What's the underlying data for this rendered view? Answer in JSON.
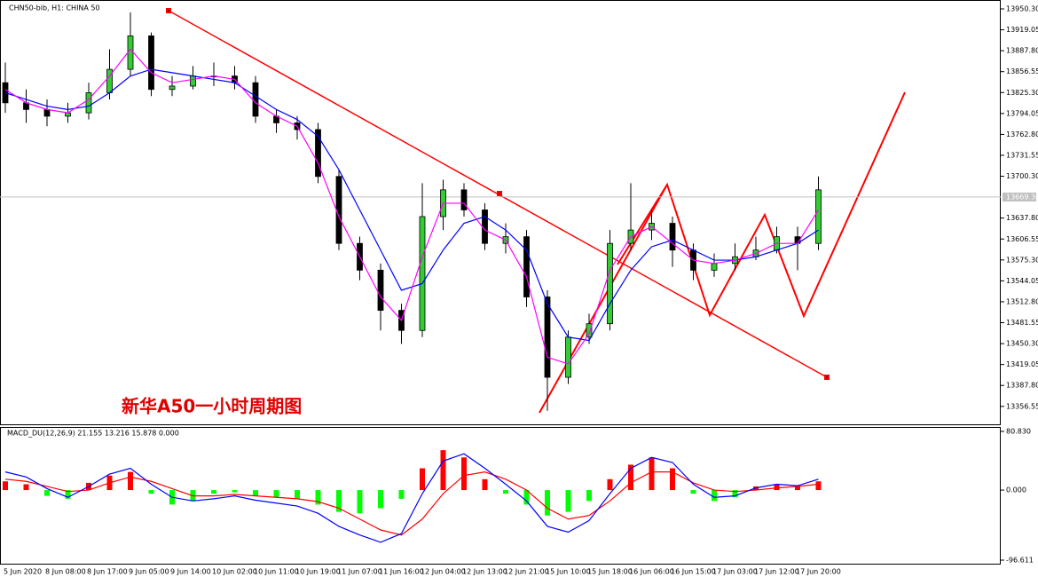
{
  "chart_data": [
    {
      "type": "candlestick",
      "title": "CHN50-bib, H1:  CHINA 50",
      "annotation": "新华A50一小时周期图",
      "categories": [
        "5 Jun 2020",
        null,
        "8 Jun 08:00",
        null,
        "8 Jun 17:00",
        null,
        "9 Jun 05:00",
        null,
        "9 Jun 14:00",
        null,
        "10 Jun 02:00",
        null,
        "10 Jun 11:00",
        null,
        "10 Jun 19:00",
        null,
        "11 Jun 07:00",
        null,
        "11 Jun 16:00",
        null,
        "12 Jun 04:00",
        null,
        "12 Jun 13:00",
        null,
        "12 Jun 21:00",
        null,
        "15 Jun 10:00",
        null,
        "15 Jun 18:00",
        null,
        "16 Jun 06:00",
        null,
        "16 Jun 15:00",
        null,
        "17 Jun 03:00",
        null,
        "17 Jun 12:00",
        null,
        "17 Jun 20:00",
        null
      ],
      "open": [
        13840,
        13810,
        13800,
        13790,
        13795,
        13825,
        13860,
        13910,
        13830,
        13835,
        13850,
        13850,
        13840,
        13790,
        13780,
        13770,
        13700,
        13600,
        13560,
        13500,
        13470,
        13640,
        13680,
        13650,
        13600,
        13610,
        13520,
        13400,
        13460,
        13480,
        13600,
        13620,
        13630,
        13590,
        13560,
        13570,
        13580,
        13590,
        13610,
        13600
      ],
      "high": [
        13870,
        13830,
        13815,
        13810,
        13840,
        13890,
        13945,
        13915,
        13850,
        13865,
        13870,
        13865,
        13850,
        13800,
        13790,
        13780,
        13710,
        13610,
        13570,
        13510,
        13690,
        13695,
        13690,
        13660,
        13630,
        13620,
        13530,
        13470,
        13495,
        13620,
        13690,
        13650,
        13640,
        13600,
        13585,
        13600,
        13610,
        13625,
        13625,
        13700
      ],
      "low": [
        13795,
        13780,
        13775,
        13780,
        13785,
        13815,
        13850,
        13820,
        13820,
        13830,
        13835,
        13830,
        13780,
        13765,
        13755,
        13690,
        13590,
        13545,
        13470,
        13450,
        13460,
        13620,
        13640,
        13590,
        13585,
        13505,
        13350,
        13390,
        13450,
        13470,
        13590,
        13605,
        13565,
        13545,
        13550,
        13560,
        13575,
        13585,
        13560,
        13590
      ],
      "close": [
        13810,
        13800,
        13790,
        13795,
        13825,
        13860,
        13910,
        13830,
        13835,
        13850,
        13850,
        13840,
        13790,
        13780,
        13770,
        13700,
        13600,
        13560,
        13500,
        13470,
        13640,
        13680,
        13650,
        13600,
        13610,
        13520,
        13400,
        13460,
        13480,
        13600,
        13620,
        13630,
        13590,
        13560,
        13570,
        13580,
        13590,
        13610,
        13600,
        13680
      ],
      "up_color": "#33cc33",
      "down_color": "#000000",
      "series": [
        {
          "color": "#0000ff",
          "values": [
            13825,
            13815,
            13805,
            13800,
            13805,
            13825,
            13850,
            13860,
            13855,
            13850,
            13845,
            13840,
            13820,
            13800,
            13785,
            13760,
            13710,
            13650,
            13590,
            13530,
            13540,
            13590,
            13630,
            13640,
            13620,
            13590,
            13510,
            13460,
            13455,
            13510,
            13560,
            13595,
            13605,
            13590,
            13575,
            13575,
            13580,
            13590,
            13600,
            13620
          ]
        },
        {
          "color": "#ff00ff",
          "values": [
            13830,
            13810,
            13800,
            13795,
            13815,
            13850,
            13890,
            13855,
            13840,
            13845,
            13850,
            13845,
            13810,
            13790,
            13775,
            13720,
            13640,
            13580,
            13520,
            13485,
            13580,
            13660,
            13660,
            13620,
            13605,
            13550,
            13430,
            13420,
            13465,
            13560,
            13610,
            13625,
            13600,
            13575,
            13570,
            13575,
            13585,
            13600,
            13600,
            13650
          ]
        }
      ],
      "current_price": {
        "value": 13669.3,
        "label": "13669.30"
      },
      "ylim": [
        13329.76,
        13963.56
      ],
      "yticks": [
        {
          "value": 13950.3,
          "label": "13950.30"
        },
        13919.05,
        {
          "value": 13887.8,
          "label": "13887.80"
        },
        13856.55,
        {
          "value": 13825.3,
          "label": "13825.30"
        },
        13794.05,
        {
          "value": 13762.8,
          "label": "13762.80"
        },
        13731.55,
        {
          "value": 13700.3,
          "label": "13700.30"
        },
        {
          "value": 13637.8,
          "label": "13637.80"
        },
        13606.55,
        {
          "value": 13575.3,
          "label": "13575.30"
        },
        13544.05,
        {
          "value": 13512.8,
          "label": "13512.80"
        },
        13481.55,
        {
          "value": 13450.3,
          "label": "13450.30"
        },
        13419.05,
        {
          "value": 13387.8,
          "label": "13387.80"
        },
        13356.55
      ]
    },
    {
      "type": "macd",
      "title": "MACD_DU(12,26,9) 21.155 13.216 15.878 0.000",
      "values": [
        12,
        8,
        -8,
        -12,
        10,
        20,
        25,
        -5,
        -20,
        -15,
        -5,
        -3,
        -8,
        -10,
        -12,
        -20,
        -30,
        -32,
        -25,
        -12,
        30,
        55,
        45,
        15,
        -5,
        -20,
        -35,
        -30,
        -15,
        15,
        35,
        45,
        30,
        -5,
        -15,
        -10,
        5,
        8,
        5,
        12
      ],
      "up_color": "#ff0000",
      "down_color": "#00ff00",
      "series": [
        {
          "color": "#ff0000",
          "values": [
            15,
            12,
            5,
            -2,
            0,
            10,
            18,
            12,
            2,
            -8,
            -8,
            -6,
            -8,
            -10,
            -12,
            -16,
            -25,
            -40,
            -55,
            -62,
            -40,
            -5,
            20,
            25,
            15,
            0,
            -25,
            -40,
            -35,
            -15,
            10,
            25,
            25,
            10,
            0,
            -2,
            0,
            3,
            5,
            8
          ]
        },
        {
          "color": "#0000ff",
          "values": [
            25,
            18,
            2,
            -10,
            5,
            22,
            30,
            8,
            -10,
            -15,
            -12,
            -8,
            -14,
            -18,
            -22,
            -32,
            -50,
            -62,
            -72,
            -60,
            -5,
            40,
            50,
            30,
            8,
            -15,
            -50,
            -58,
            -42,
            -5,
            30,
            45,
            38,
            8,
            -10,
            -8,
            3,
            8,
            6,
            15
          ]
        }
      ],
      "ylim": [
        -107.6,
        85.73
      ],
      "yticks": [
        {
          "value": 80.83,
          "label": "80.830"
        },
        {
          "value": 0,
          "label": "0.000"
        },
        {
          "value": -96.611,
          "label": "-96.611"
        }
      ]
    }
  ]
}
